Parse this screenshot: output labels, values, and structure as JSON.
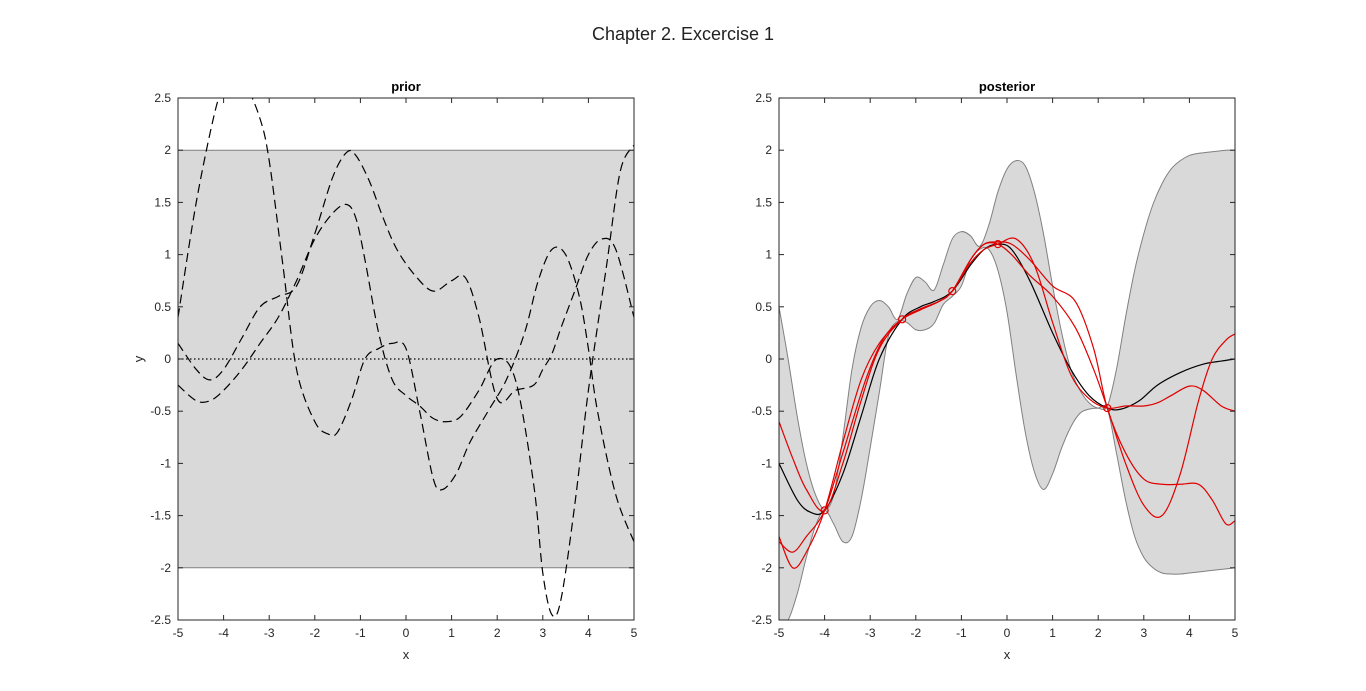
{
  "figure_title": "Chapter 2. Excercise 1",
  "colors": {
    "band": "#d9d9d9",
    "band_edge": "#808080",
    "prior_sample": "#000000",
    "mean": "#000000",
    "posterior_sample": "#e00000",
    "observation": "#e00000",
    "axes": "#262626"
  },
  "chart_data": [
    {
      "type": "line",
      "title": "prior",
      "xlabel": "x",
      "ylabel": "y",
      "xlim": [
        -5,
        5
      ],
      "ylim": [
        -2.5,
        2.5
      ],
      "xticks": [
        -5,
        -4,
        -3,
        -2,
        -1,
        0,
        1,
        2,
        3,
        4,
        5
      ],
      "yticks": [
        -2.5,
        -2,
        -1.5,
        -1,
        -0.5,
        0,
        0.5,
        1,
        1.5,
        2,
        2.5
      ],
      "band": {
        "x": [
          -5,
          5
        ],
        "lower": [
          -2,
          -2
        ],
        "upper": [
          2,
          2
        ]
      },
      "mean": {
        "style": "dotted",
        "x": [
          -5,
          5
        ],
        "y": [
          0,
          0
        ]
      },
      "samples": [
        {
          "style": "dashed",
          "x": [
            -5,
            -4.6,
            -4.2,
            -4.0,
            -3.8,
            -3.5,
            -3.2,
            -3.0,
            -2.7,
            -2.4,
            -2.0,
            -1.7,
            -1.5,
            -1.2,
            -0.9,
            -0.6,
            -0.3,
            0,
            0.3,
            0.6,
            0.8,
            1.1,
            1.4,
            1.8,
            2.2,
            2.6,
            2.9,
            3.2,
            3.5,
            3.8,
            4.0,
            4.2,
            4.6,
            5.0
          ],
          "y": [
            0.4,
            1.5,
            2.35,
            2.6,
            2.65,
            2.6,
            2.3,
            1.9,
            0.9,
            -0.1,
            -0.6,
            -0.72,
            -0.7,
            -0.4,
            0.0,
            0.1,
            0.15,
            0.1,
            -0.5,
            -1.15,
            -1.25,
            -1.1,
            -0.8,
            -0.5,
            -0.2,
            0.25,
            0.75,
            1.05,
            1.0,
            0.6,
            0.1,
            -0.5,
            -1.3,
            -1.75
          ]
        },
        {
          "style": "dashed",
          "x": [
            -5,
            -4.6,
            -4.3,
            -4.0,
            -3.6,
            -3.2,
            -2.8,
            -2.4,
            -2.0,
            -1.6,
            -1.3,
            -1.1,
            -0.8,
            -0.5,
            -0.2,
            0.2,
            0.6,
            1.0,
            1.3,
            1.6,
            2.0,
            2.4,
            2.8,
            3.0,
            3.2,
            3.4,
            3.7,
            4.0,
            4.3,
            4.6,
            5.0
          ],
          "y": [
            0.15,
            -0.1,
            -0.2,
            -0.1,
            0.2,
            0.5,
            0.6,
            0.7,
            1.2,
            1.75,
            1.98,
            1.95,
            1.7,
            1.35,
            1.05,
            0.8,
            0.65,
            0.75,
            0.78,
            0.4,
            -0.38,
            -0.3,
            -0.25,
            -0.1,
            0.05,
            0.3,
            0.65,
            1.0,
            1.15,
            1.05,
            0.4
          ]
        },
        {
          "style": "dashed",
          "x": [
            -5,
            -4.6,
            -4.3,
            -4.0,
            -3.6,
            -3.2,
            -2.8,
            -2.4,
            -2.0,
            -1.6,
            -1.3,
            -1.1,
            -0.9,
            -0.6,
            -0.3,
            0,
            0.3,
            0.6,
            0.9,
            1.2,
            1.6,
            2.0,
            2.4,
            2.8,
            3.0,
            3.2,
            3.4,
            3.7,
            4.0,
            4.4,
            4.7,
            5.0
          ],
          "y": [
            -0.25,
            -0.4,
            -0.4,
            -0.3,
            -0.1,
            0.15,
            0.4,
            0.75,
            1.15,
            1.4,
            1.48,
            1.35,
            0.95,
            0.25,
            -0.2,
            -0.35,
            -0.45,
            -0.57,
            -0.6,
            -0.55,
            -0.3,
            0.0,
            -0.2,
            -1.2,
            -2.05,
            -2.45,
            -2.3,
            -1.4,
            -0.3,
            0.9,
            1.8,
            2.05
          ]
        }
      ]
    },
    {
      "type": "line",
      "title": "posterior",
      "xlabel": "x",
      "ylabel": "",
      "xlim": [
        -5,
        5
      ],
      "ylim": [
        -2.5,
        2.5
      ],
      "xticks": [
        -5,
        -4,
        -3,
        -2,
        -1,
        0,
        1,
        2,
        3,
        4,
        5
      ],
      "yticks": [
        -2.5,
        -2,
        -1.5,
        -1,
        -0.5,
        0,
        0.5,
        1,
        1.5,
        2,
        2.5
      ],
      "band": {
        "x": [
          -5,
          -4.8,
          -4.6,
          -4.4,
          -4.2,
          -4.0,
          -3.8,
          -3.6,
          -3.4,
          -3.2,
          -3.0,
          -2.8,
          -2.6,
          -2.4,
          -2.2,
          -2.0,
          -1.8,
          -1.6,
          -1.4,
          -1.2,
          -1.0,
          -0.8,
          -0.6,
          -0.4,
          -0.2,
          0,
          0.2,
          0.4,
          0.6,
          0.8,
          1.0,
          1.2,
          1.4,
          1.6,
          1.8,
          2.0,
          2.2,
          2.4,
          2.6,
          2.8,
          3.0,
          3.2,
          3.4,
          3.6,
          3.8,
          4.0,
          4.2,
          4.4,
          4.6,
          4.8,
          5.0
        ],
        "upper": [
          0.5,
          0.0,
          -0.55,
          -1.0,
          -1.3,
          -1.44,
          -1.3,
          -0.75,
          -0.1,
          0.3,
          0.5,
          0.56,
          0.5,
          0.38,
          0.62,
          0.78,
          0.74,
          0.66,
          0.9,
          1.15,
          1.22,
          1.18,
          1.08,
          1.28,
          1.6,
          1.82,
          1.9,
          1.85,
          1.6,
          1.2,
          0.7,
          0.25,
          -0.1,
          -0.3,
          -0.42,
          -0.47,
          -0.45,
          -0.1,
          0.4,
          0.85,
          1.2,
          1.48,
          1.68,
          1.82,
          1.9,
          1.95,
          1.97,
          1.98,
          1.99,
          2.0,
          2.0
        ],
        "lower": [
          -2.55,
          -2.5,
          -2.25,
          -1.9,
          -1.6,
          -1.45,
          -1.58,
          -1.75,
          -1.7,
          -1.35,
          -0.85,
          -0.32,
          0.22,
          0.36,
          0.35,
          0.28,
          0.28,
          0.34,
          0.52,
          0.6,
          0.7,
          0.95,
          1.05,
          1.05,
          0.85,
          0.45,
          -0.15,
          -0.7,
          -1.08,
          -1.25,
          -1.1,
          -0.85,
          -0.65,
          -0.52,
          -0.48,
          -0.47,
          -0.48,
          -0.9,
          -1.35,
          -1.7,
          -1.9,
          -2.0,
          -2.05,
          -2.06,
          -2.06,
          -2.05,
          -2.04,
          -2.03,
          -2.02,
          -2.01,
          -2.0
        ]
      },
      "observations": {
        "x": [
          -4.0,
          -2.3,
          -1.2,
          -0.2,
          2.2
        ],
        "y": [
          -1.45,
          0.38,
          0.65,
          1.1,
          -0.47
        ]
      },
      "mean": {
        "style": "solid",
        "x": [
          -5,
          -4.6,
          -4.3,
          -4.0,
          -3.6,
          -3.2,
          -2.8,
          -2.3,
          -1.9,
          -1.6,
          -1.2,
          -0.8,
          -0.5,
          -0.2,
          0.1,
          0.5,
          1.0,
          1.4,
          1.8,
          2.2,
          2.5,
          2.9,
          3.3,
          3.8,
          4.3,
          4.7,
          5.0
        ],
        "y": [
          -1.0,
          -1.35,
          -1.47,
          -1.45,
          -1.1,
          -0.55,
          0.0,
          0.38,
          0.5,
          0.55,
          0.65,
          0.9,
          1.05,
          1.1,
          1.05,
          0.75,
          0.25,
          -0.1,
          -0.35,
          -0.47,
          -0.48,
          -0.4,
          -0.25,
          -0.13,
          -0.05,
          -0.02,
          0.0
        ]
      },
      "samples": [
        {
          "style": "solid",
          "x": [
            -5,
            -4.7,
            -4.4,
            -4.0,
            -3.6,
            -3.1,
            -2.7,
            -2.3,
            -1.9,
            -1.5,
            -1.2,
            -0.8,
            -0.5,
            -0.2,
            0.2,
            0.6,
            1.0,
            1.4,
            1.8,
            2.2,
            2.6,
            3.0,
            3.3,
            3.6,
            4.0,
            4.3,
            4.7,
            5.0
          ],
          "y": [
            -1.75,
            -1.85,
            -1.7,
            -1.45,
            -0.9,
            -0.2,
            0.2,
            0.38,
            0.47,
            0.55,
            0.65,
            0.92,
            1.05,
            1.1,
            1.15,
            0.9,
            0.35,
            -0.15,
            -0.38,
            -0.47,
            -0.45,
            -0.45,
            -0.42,
            -0.35,
            -0.26,
            -0.3,
            -0.45,
            -0.5
          ]
        },
        {
          "style": "solid",
          "x": [
            -5,
            -4.7,
            -4.4,
            -4.0,
            -3.6,
            -3.2,
            -2.8,
            -2.3,
            -1.9,
            -1.5,
            -1.2,
            -0.8,
            -0.5,
            -0.2,
            0.1,
            0.5,
            1.0,
            1.5,
            1.9,
            2.2,
            2.6,
            3.0,
            3.4,
            3.8,
            4.2,
            4.5,
            4.8,
            5.0
          ],
          "y": [
            -1.7,
            -2.0,
            -1.85,
            -1.45,
            -0.8,
            -0.2,
            0.15,
            0.38,
            0.48,
            0.55,
            0.65,
            0.95,
            1.1,
            1.12,
            1.1,
            0.95,
            0.7,
            0.55,
            0.1,
            -0.47,
            -0.9,
            -1.15,
            -1.2,
            -1.2,
            -1.2,
            -1.35,
            -1.58,
            -1.55
          ]
        },
        {
          "style": "solid",
          "x": [
            -5,
            -4.7,
            -4.4,
            -4.0,
            -3.6,
            -3.2,
            -2.8,
            -2.3,
            -1.9,
            -1.5,
            -1.2,
            -0.8,
            -0.5,
            -0.2,
            0.1,
            0.5,
            1.0,
            1.5,
            1.9,
            2.2,
            2.6,
            3.0,
            3.4,
            3.8,
            4.2,
            4.5,
            4.8,
            5.0
          ],
          "y": [
            -0.6,
            -0.95,
            -1.25,
            -1.45,
            -1.0,
            -0.4,
            0.1,
            0.38,
            0.48,
            0.55,
            0.65,
            0.95,
            1.1,
            1.1,
            1.0,
            0.8,
            0.6,
            0.3,
            -0.1,
            -0.47,
            -1.0,
            -1.4,
            -1.5,
            -1.1,
            -0.4,
            0.0,
            0.18,
            0.24
          ]
        }
      ]
    }
  ]
}
